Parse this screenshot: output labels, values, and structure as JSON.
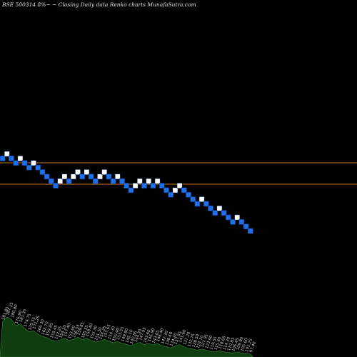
{
  "chart_data": {
    "type": "renko",
    "title": "BSE 500314  8%~ ~ Closing Daily data  Renko  charts MunafaSutra.com",
    "colors": {
      "background": "#000000",
      "up_brick": "#ffffff",
      "down_brick": "#1e6fe8",
      "brick_border": "#0a2a66",
      "reference_line": "#c8781e",
      "volume_fill": "#0f3d0f",
      "volume_edge": "#3a8a3a"
    },
    "reference_lines": [
      228,
      258
    ],
    "bricks": [
      {
        "col": 0,
        "row": 1,
        "dir": "down"
      },
      {
        "col": 1,
        "row": 0,
        "dir": "up"
      },
      {
        "col": 2,
        "row": 1,
        "dir": "down"
      },
      {
        "col": 3,
        "row": 2,
        "dir": "down"
      },
      {
        "col": 4,
        "row": 1,
        "dir": "up"
      },
      {
        "col": 5,
        "row": 2,
        "dir": "down"
      },
      {
        "col": 6,
        "row": 3,
        "dir": "down"
      },
      {
        "col": 7,
        "row": 2,
        "dir": "up"
      },
      {
        "col": 8,
        "row": 3,
        "dir": "down"
      },
      {
        "col": 9,
        "row": 4,
        "dir": "down"
      },
      {
        "col": 10,
        "row": 5,
        "dir": "down"
      },
      {
        "col": 11,
        "row": 6,
        "dir": "down"
      },
      {
        "col": 12,
        "row": 7,
        "dir": "down"
      },
      {
        "col": 13,
        "row": 6,
        "dir": "up"
      },
      {
        "col": 14,
        "row": 5,
        "dir": "up"
      },
      {
        "col": 15,
        "row": 6,
        "dir": "down"
      },
      {
        "col": 16,
        "row": 5,
        "dir": "up"
      },
      {
        "col": 17,
        "row": 4,
        "dir": "up"
      },
      {
        "col": 18,
        "row": 5,
        "dir": "down"
      },
      {
        "col": 19,
        "row": 4,
        "dir": "up"
      },
      {
        "col": 20,
        "row": 5,
        "dir": "down"
      },
      {
        "col": 21,
        "row": 6,
        "dir": "down"
      },
      {
        "col": 22,
        "row": 5,
        "dir": "up"
      },
      {
        "col": 23,
        "row": 4,
        "dir": "up"
      },
      {
        "col": 24,
        "row": 5,
        "dir": "down"
      },
      {
        "col": 25,
        "row": 6,
        "dir": "down"
      },
      {
        "col": 26,
        "row": 5,
        "dir": "up"
      },
      {
        "col": 27,
        "row": 6,
        "dir": "down"
      },
      {
        "col": 28,
        "row": 7,
        "dir": "down"
      },
      {
        "col": 29,
        "row": 8,
        "dir": "down"
      },
      {
        "col": 30,
        "row": 7,
        "dir": "up"
      },
      {
        "col": 31,
        "row": 6,
        "dir": "up"
      },
      {
        "col": 32,
        "row": 7,
        "dir": "down"
      },
      {
        "col": 33,
        "row": 6,
        "dir": "up"
      },
      {
        "col": 34,
        "row": 7,
        "dir": "down"
      },
      {
        "col": 35,
        "row": 6,
        "dir": "up"
      },
      {
        "col": 36,
        "row": 7,
        "dir": "down"
      },
      {
        "col": 37,
        "row": 8,
        "dir": "down"
      },
      {
        "col": 38,
        "row": 9,
        "dir": "down"
      },
      {
        "col": 39,
        "row": 8,
        "dir": "up"
      },
      {
        "col": 40,
        "row": 7,
        "dir": "up"
      },
      {
        "col": 41,
        "row": 8,
        "dir": "down"
      },
      {
        "col": 42,
        "row": 9,
        "dir": "down"
      },
      {
        "col": 43,
        "row": 10,
        "dir": "down"
      },
      {
        "col": 44,
        "row": 11,
        "dir": "down"
      },
      {
        "col": 45,
        "row": 10,
        "dir": "up"
      },
      {
        "col": 46,
        "row": 11,
        "dir": "down"
      },
      {
        "col": 47,
        "row": 12,
        "dir": "down"
      },
      {
        "col": 48,
        "row": 13,
        "dir": "down"
      },
      {
        "col": 49,
        "row": 12,
        "dir": "up"
      },
      {
        "col": 50,
        "row": 13,
        "dir": "down"
      },
      {
        "col": 51,
        "row": 14,
        "dir": "down"
      },
      {
        "col": 52,
        "row": 15,
        "dir": "down"
      },
      {
        "col": 53,
        "row": 14,
        "dir": "up"
      },
      {
        "col": 54,
        "row": 15,
        "dir": "down"
      },
      {
        "col": 55,
        "row": 16,
        "dir": "down"
      },
      {
        "col": 56,
        "row": 17,
        "dir": "down"
      }
    ],
    "brick_labels": [
      "181.85",
      "187.25",
      "180.80",
      "176.90",
      "181.35",
      "174.75",
      "170.55",
      "172.25",
      "166.30",
      "162.70",
      "159.85",
      "155.45",
      "152.25",
      "154.10",
      "157.40",
      "153.60",
      "156.55",
      "159.85",
      "155.55",
      "158.40",
      "155.30",
      "151.30",
      "154.25",
      "157.65",
      "154.30",
      "150.40",
      "153.55",
      "149.80",
      "145.10",
      "140.85",
      "144.30",
      "147.95",
      "143.60",
      "146.90",
      "143.05",
      "146.40",
      "142.30",
      "138.60",
      "134.20",
      "137.55",
      "141.60",
      "137.20",
      "132.75",
      "128.50",
      "124.70",
      "127.95",
      "123.90",
      "119.55",
      "115.40",
      "118.65",
      "114.30",
      "110.85",
      "106.45",
      "109.90",
      "105.60",
      "101.25",
      "97.40"
    ],
    "volume": [
      0.62,
      0.7,
      0.66,
      0.55,
      0.58,
      0.5,
      0.44,
      0.46,
      0.4,
      0.36,
      0.34,
      0.3,
      0.28,
      0.3,
      0.33,
      0.29,
      0.31,
      0.35,
      0.3,
      0.33,
      0.29,
      0.26,
      0.28,
      0.31,
      0.28,
      0.25,
      0.27,
      0.24,
      0.22,
      0.2,
      0.23,
      0.26,
      0.22,
      0.24,
      0.21,
      0.24,
      0.2,
      0.18,
      0.16,
      0.19,
      0.22,
      0.18,
      0.15,
      0.14,
      0.12,
      0.14,
      0.12,
      0.1,
      0.09,
      0.11,
      0.09,
      0.08,
      0.07,
      0.09,
      0.07,
      0.06,
      0.05
    ]
  }
}
